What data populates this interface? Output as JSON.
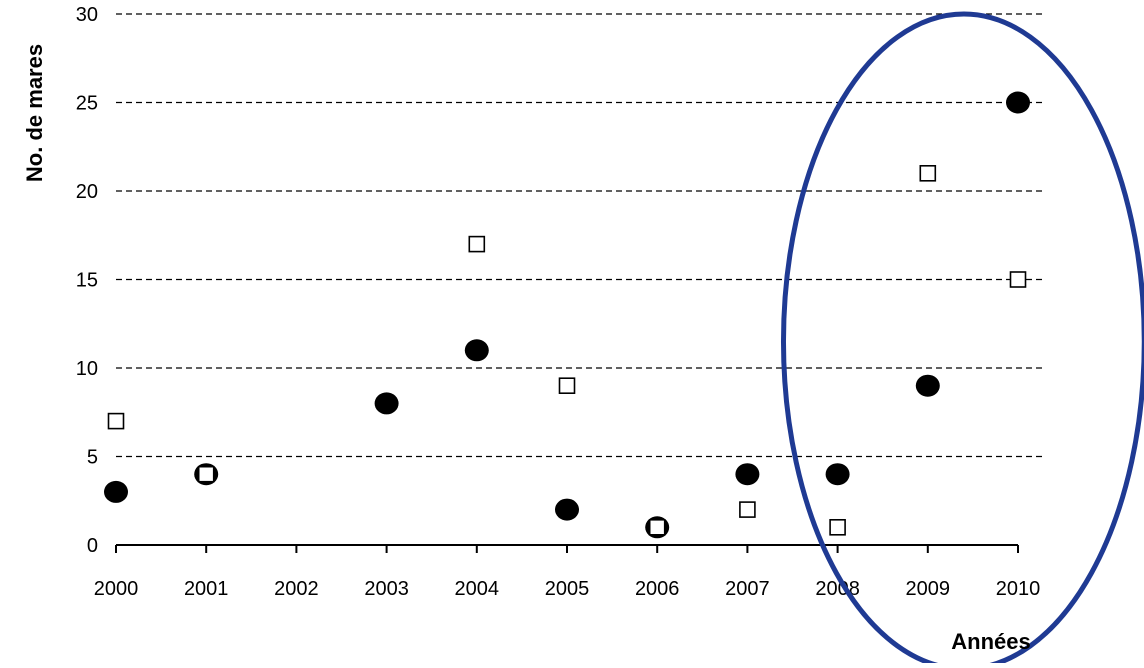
{
  "chart_data": {
    "type": "scatter",
    "title": "",
    "xlabel": "Années",
    "ylabel": "No. de mares",
    "x": [
      2000,
      2001,
      2002,
      2003,
      2004,
      2005,
      2006,
      2007,
      2008,
      2009,
      2010
    ],
    "x_tick_labels": [
      "2000",
      "2001",
      "2002",
      "2003",
      "2004",
      "2005",
      "2006",
      "2007",
      "2008",
      "2009",
      "2010"
    ],
    "y_ticks": [
      0,
      5,
      10,
      15,
      20,
      25,
      30
    ],
    "y_tick_labels": [
      "0",
      "5",
      "10",
      "15",
      "20",
      "25",
      "30"
    ],
    "xlim": [
      2000,
      2010
    ],
    "ylim": [
      0,
      30
    ],
    "grid": "horizontal dashed",
    "legend": "none",
    "series": [
      {
        "marker": "filled-circle",
        "color": "#000000",
        "points": [
          {
            "x": 2000,
            "y": 3
          },
          {
            "x": 2001,
            "y": 4
          },
          {
            "x": 2003,
            "y": 8
          },
          {
            "x": 2004,
            "y": 11
          },
          {
            "x": 2005,
            "y": 2
          },
          {
            "x": 2006,
            "y": 1
          },
          {
            "x": 2007,
            "y": 4
          },
          {
            "x": 2008,
            "y": 4
          },
          {
            "x": 2009,
            "y": 9
          },
          {
            "x": 2010,
            "y": 25
          }
        ]
      },
      {
        "marker": "open-square",
        "color": "#000000",
        "points": [
          {
            "x": 2000,
            "y": 7
          },
          {
            "x": 2001,
            "y": 4
          },
          {
            "x": 2004,
            "y": 17
          },
          {
            "x": 2005,
            "y": 9
          },
          {
            "x": 2006,
            "y": 1
          },
          {
            "x": 2007,
            "y": 2
          },
          {
            "x": 2008,
            "y": 1
          },
          {
            "x": 2009,
            "y": 21
          },
          {
            "x": 2010,
            "y": 15
          }
        ]
      }
    ],
    "annotations": [
      {
        "type": "ellipse",
        "color": "#1f3a93",
        "x_range": [
          2007.4,
          2011.4
        ],
        "y_range": [
          -7,
          30
        ]
      }
    ]
  }
}
